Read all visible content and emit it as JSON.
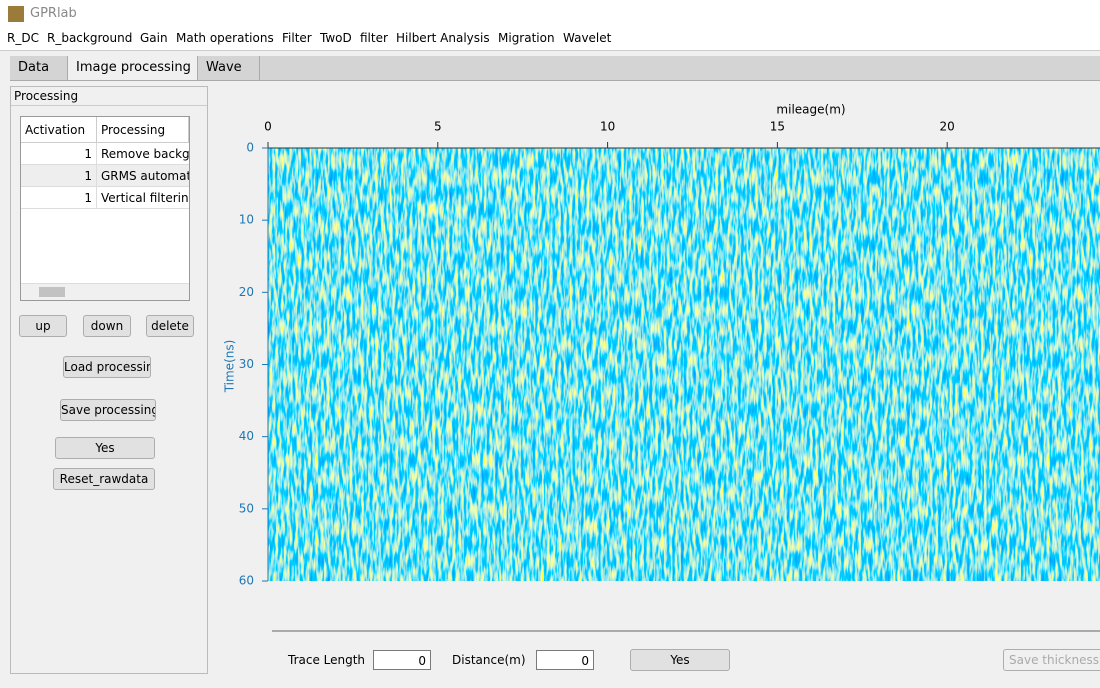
{
  "window": {
    "title": "GPRlab"
  },
  "menu": [
    "R_DC",
    "R_background",
    "Gain",
    "Math operations",
    "Filter",
    "TwoD",
    "filter",
    "Hilbert Analysis",
    "Migration",
    "Wavelet"
  ],
  "tabs": [
    "Data",
    "Image processing",
    "Wave"
  ],
  "panel": {
    "title": "Processing",
    "table": {
      "columns": [
        "Activation",
        "Processing"
      ],
      "rows": [
        [
          1,
          "Remove backgro"
        ],
        [
          1,
          "GRMS automati"
        ],
        [
          1,
          "Vertical filtering"
        ]
      ]
    },
    "buttons": {
      "up": "up",
      "down": "down",
      "delete": "delete",
      "load": "Load processin",
      "save": "Save processing",
      "yes": "Yes",
      "reset": "Reset_rawdata"
    }
  },
  "chart_data": {
    "type": "image",
    "x_label": "mileage(m)",
    "y_label": "Time(ns)",
    "xlim": [
      0,
      24.5
    ],
    "ylim": [
      0,
      60
    ],
    "xticks": [
      0,
      5,
      10,
      15,
      20
    ],
    "yticks": [
      0,
      10,
      20,
      30,
      40,
      50,
      60
    ]
  },
  "footer": {
    "trace_length_label": "Trace Length",
    "trace_length": 0,
    "distance_label": "Distance(m)",
    "distance": 0,
    "yes": "Yes",
    "save_thickness": "Save thickness"
  }
}
